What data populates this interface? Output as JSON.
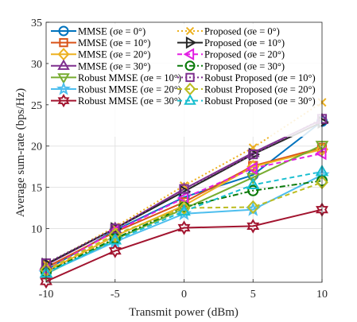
{
  "chart_data": {
    "type": "line",
    "title": "",
    "xlabel": "Transmit power (dBm)",
    "ylabel": "Average sum-rate (bps/Hz)",
    "xlim": [
      -10,
      10
    ],
    "ylim": [
      3.5,
      35
    ],
    "xticks": [
      -10,
      -5,
      0,
      5,
      10
    ],
    "yticks": [
      10,
      15,
      20,
      25,
      30,
      35
    ],
    "x": [
      -10,
      -5,
      0,
      5,
      10
    ],
    "grid": true,
    "legend_position": "top (two columns inside plot)",
    "series": [
      {
        "name": "MMSE (σe = 0°)",
        "color": "#0072BD",
        "dash": "solid",
        "marker": "circle",
        "values": [
          5.0,
          9.8,
          13.8,
          16.5,
          23.0
        ]
      },
      {
        "name": "MMSE (σe = 10°)",
        "color": "#D95319",
        "dash": "solid",
        "marker": "square",
        "values": [
          5.3,
          9.6,
          13.2,
          17.6,
          19.8
        ]
      },
      {
        "name": "MMSE (σe = 20°)",
        "color": "#EDB120",
        "dash": "solid",
        "marker": "diamond",
        "values": [
          4.8,
          9.1,
          12.8,
          17.5,
          19.6
        ]
      },
      {
        "name": "MMSE (σe = 30°)",
        "color": "#7E2F8E",
        "dash": "solid",
        "marker": "triangle-up",
        "values": [
          5.6,
          10.0,
          14.8,
          19.2,
          23.2
        ]
      },
      {
        "name": "Robust MMSE (σe = 10°)",
        "color": "#77AC30",
        "dash": "solid",
        "marker": "triangle-down",
        "values": [
          4.5,
          8.7,
          12.4,
          16.2,
          20.1
        ]
      },
      {
        "name": "Robust MMSE (σe = 20°)",
        "color": "#4DBEEE",
        "dash": "solid",
        "marker": "star",
        "values": [
          4.6,
          8.4,
          11.8,
          12.3,
          16.5
        ]
      },
      {
        "name": "Robust MMSE (σe = 30°)",
        "color": "#A2142F",
        "dash": "solid",
        "marker": "hexagram",
        "values": [
          3.6,
          7.3,
          10.1,
          10.3,
          12.3
        ]
      },
      {
        "name": "Proposed (σe = 0°)",
        "color": "#EDB120",
        "dash": "dotted",
        "marker": "x",
        "values": [
          5.7,
          10.2,
          15.2,
          19.8,
          25.3
        ]
      },
      {
        "name": "Proposed (σe = 10°)",
        "color": "#262626",
        "dash": "solid",
        "marker": "triangle-right",
        "values": [
          5.7,
          10.0,
          14.5,
          19.0,
          22.9
        ]
      },
      {
        "name": "Proposed (σe = 20°)",
        "color": "#E31FE3",
        "dash": "dashed",
        "marker": "triangle-left",
        "values": [
          5.0,
          9.7,
          13.7,
          17.3,
          19.1
        ]
      },
      {
        "name": "Proposed (σe = 30°)",
        "color": "#0A7A0A",
        "dash": "dashdot",
        "marker": "circle",
        "values": [
          4.7,
          8.8,
          12.6,
          14.6,
          15.8
        ]
      },
      {
        "name": "Robust Proposed (σe = 10°)",
        "color": "#7E2F8E",
        "dash": "dotted",
        "marker": "square",
        "values": [
          5.8,
          10.0,
          14.8,
          19.0,
          23.3
        ]
      },
      {
        "name": "Robust Proposed (σe = 20°)",
        "color": "#BDBD22",
        "dash": "dashed",
        "marker": "diamond",
        "values": [
          5.0,
          9.3,
          12.5,
          12.6,
          15.6
        ]
      },
      {
        "name": "Robust Proposed (σe = 30°)",
        "color": "#17BECF",
        "dash": "dashed",
        "marker": "triangle-up",
        "values": [
          4.6,
          8.6,
          12.1,
          15.3,
          16.9
        ]
      }
    ]
  }
}
